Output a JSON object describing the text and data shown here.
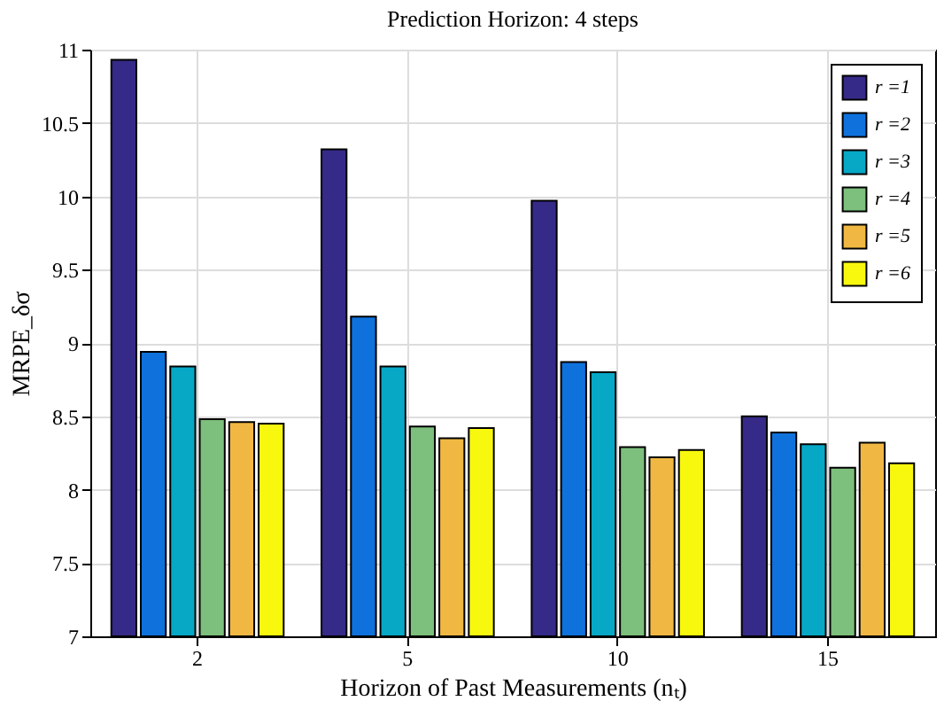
{
  "chart_data": {
    "type": "bar",
    "title": "Prediction Horizon: 4 steps",
    "xlabel": "Horizon of Past Measurements (nₜ)",
    "ylabel": "MRPE_δσ",
    "categories": [
      "2",
      "5",
      "10",
      "15"
    ],
    "series": [
      {
        "name": "r =1",
        "color": "#352a87",
        "values": [
          10.93,
          10.32,
          9.97,
          8.5
        ]
      },
      {
        "name": "r =2",
        "color": "#0f72dc",
        "values": [
          8.94,
          9.18,
          8.87,
          8.39
        ]
      },
      {
        "name": "r =3",
        "color": "#06a8c6",
        "values": [
          8.84,
          8.84,
          8.8,
          8.31
        ]
      },
      {
        "name": "r =4",
        "color": "#7dbf7c",
        "values": [
          8.48,
          8.43,
          8.29,
          8.15
        ]
      },
      {
        "name": "r =5",
        "color": "#f0b843",
        "values": [
          8.46,
          8.35,
          8.22,
          8.32
        ]
      },
      {
        "name": "r =6",
        "color": "#f8f80f",
        "values": [
          8.45,
          8.42,
          8.27,
          8.18
        ]
      }
    ],
    "ylim": [
      7,
      11
    ],
    "yticks": [
      7,
      7.5,
      8,
      8.5,
      9,
      9.5,
      10,
      10.5,
      11
    ],
    "grid": true,
    "legend": "top right"
  }
}
